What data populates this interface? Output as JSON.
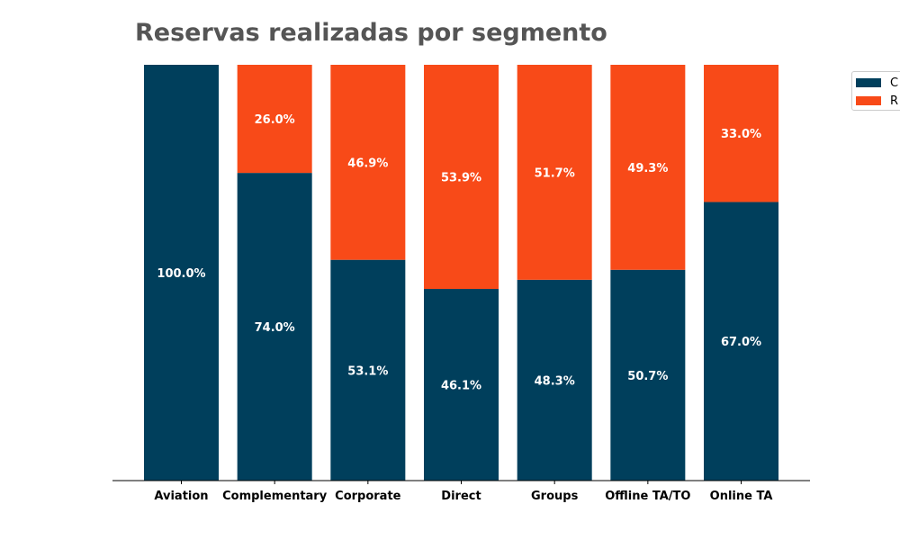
{
  "chart_data": {
    "type": "bar",
    "stacked": true,
    "title": "Reservas realizadas por segmento",
    "categories": [
      "Aviation",
      "Complementary",
      "Corporate",
      "Direct",
      "Groups",
      "Offline TA/TO",
      "Online TA"
    ],
    "series": [
      {
        "name": "C",
        "color": "#003f5c",
        "values": [
          100.0,
          74.0,
          53.1,
          46.1,
          48.3,
          50.7,
          67.0
        ],
        "labels": [
          "100.0%",
          "74.0%",
          "53.1%",
          "46.1%",
          "48.3%",
          "50.7%",
          "67.0%"
        ]
      },
      {
        "name": "R",
        "color": "#f84a18",
        "values": [
          0.0,
          26.0,
          46.9,
          53.9,
          51.7,
          49.3,
          33.0
        ],
        "labels": [
          "",
          "26.0%",
          "46.9%",
          "53.9%",
          "51.7%",
          "49.3%",
          "33.0%"
        ]
      }
    ],
    "ylim": [
      0,
      100
    ],
    "y_axis_visible": false,
    "grid": false,
    "legend_position": "top-right"
  }
}
